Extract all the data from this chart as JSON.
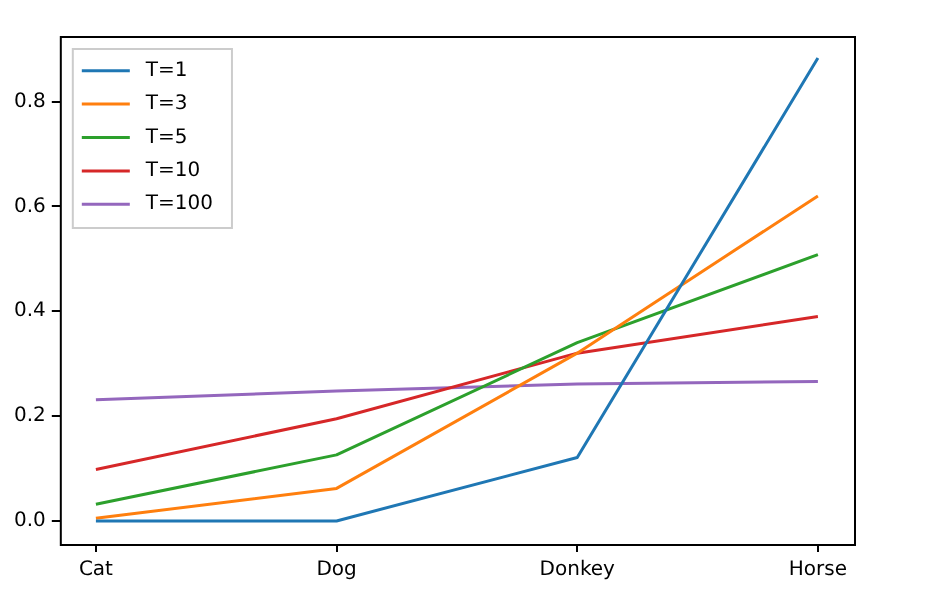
{
  "chart_data": {
    "type": "line",
    "categories": [
      "Cat",
      "Dog",
      "Donkey",
      "Horse"
    ],
    "series": [
      {
        "name": "T=1",
        "color": "#1f77b4",
        "values": [
          0,
          0,
          0.121,
          0.883
        ]
      },
      {
        "name": "T=3",
        "color": "#ff7f0e",
        "values": [
          0.005,
          0.062,
          0.32,
          0.62
        ]
      },
      {
        "name": "T=5",
        "color": "#2ca02c",
        "values": [
          0.032,
          0.126,
          0.34,
          0.508
        ]
      },
      {
        "name": "T=10",
        "color": "#d62728",
        "values": [
          0.098,
          0.195,
          0.32,
          0.39
        ]
      },
      {
        "name": "T=100",
        "color": "#9467bd",
        "values": [
          0.231,
          0.248,
          0.261,
          0.266
        ]
      }
    ],
    "ylim": [
      -0.044,
      0.925
    ],
    "yticks": [
      {
        "value": 0,
        "label": "0.0"
      },
      {
        "value": 0.2,
        "label": "0.2"
      },
      {
        "value": 0.4,
        "label": "0.4"
      },
      {
        "value": 0.6,
        "label": "0.6"
      },
      {
        "value": 0.8,
        "label": "0.8"
      }
    ],
    "grid": false,
    "legend": "top left",
    "marker": "none",
    "line_style": "solid"
  }
}
